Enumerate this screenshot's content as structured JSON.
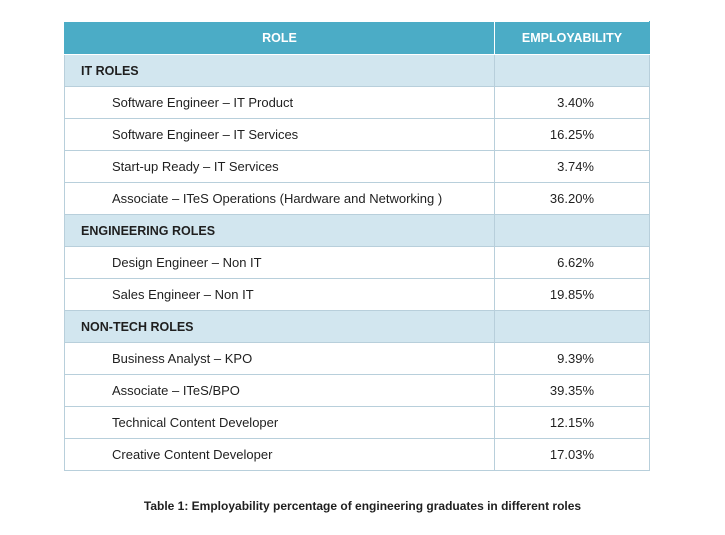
{
  "header": {
    "role": "ROLE",
    "employability": "EMPLOYABILITY"
  },
  "sections": [
    {
      "title": "IT ROLES",
      "rows": [
        {
          "role": "Software  Engineer – IT Product",
          "value": "3.40%"
        },
        {
          "role": "Software Engineer – IT Services",
          "value": "16.25%"
        },
        {
          "role": "Start-up Ready – IT Services",
          "value": "3.74%"
        },
        {
          "role": "Associate – ITeS Operations (Hardware and Networking )",
          "value": "36.20%"
        }
      ]
    },
    {
      "title": "ENGINEERING ROLES",
      "rows": [
        {
          "role": "Design Engineer – Non IT",
          "value": "6.62%"
        },
        {
          "role": "Sales Engineer – Non IT",
          "value": "19.85%"
        }
      ]
    },
    {
      "title": "NON-TECH ROLES",
      "rows": [
        {
          "role": "Business Analyst – KPO",
          "value": "9.39%"
        },
        {
          "role": "Associate – ITeS/BPO",
          "value": "39.35%"
        },
        {
          "role": "Technical Content Developer",
          "value": "12.15%"
        },
        {
          "role": "Creative Content Developer",
          "value": "17.03%"
        }
      ]
    }
  ],
  "caption": "Table 1: Employability percentage of engineering graduates in different roles",
  "colors": {
    "header_bg": "#4bacc6",
    "section_bg": "#d2e6ef",
    "border": "#b8cfdb"
  }
}
